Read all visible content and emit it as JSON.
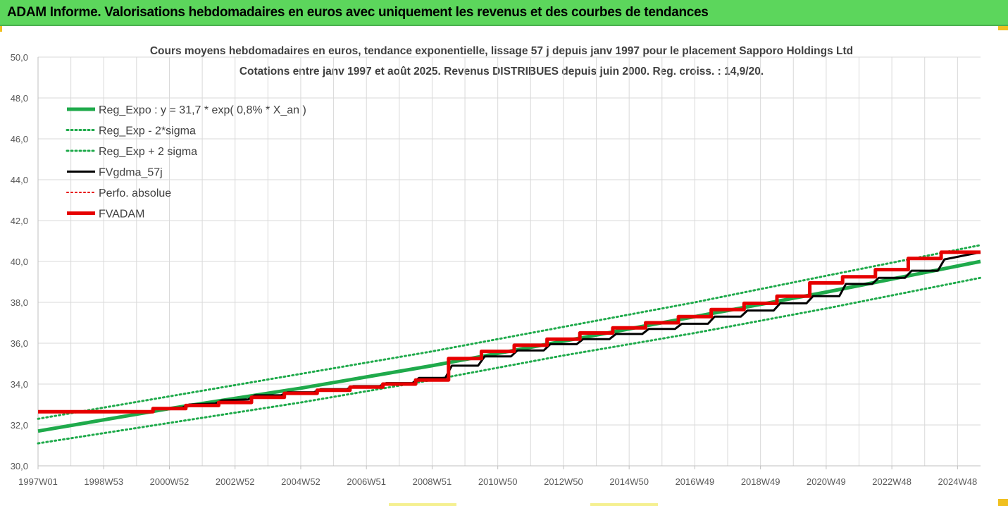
{
  "banner": {
    "title": "ADAM Informe. Valorisations hebdomadaires en euros avec uniquement les revenus et des courbes de tendances"
  },
  "colors": {
    "banner_bg": "#5cd65c",
    "green_line": "#1faa4b",
    "red_line": "#e60000",
    "black_line": "#000000",
    "grid": "#d9d9d9"
  },
  "chart_data": {
    "type": "line",
    "title": "Cours moyens hebdomadaires en euros, tendance exponentielle, lissage 57 j depuis janv 1997 pour le placement Sapporo Holdings Ltd",
    "subtitle": "Cotations entre janv 1997 et août 2025. Revenus DISTRIBUES depuis juin 2000. Reg. croiss. : 14,9/20.",
    "xlabel": "",
    "ylabel": "",
    "ylim": [
      30,
      50
    ],
    "xlim": [
      1997.0,
      2025.7
    ],
    "y_ticks": [
      "30,0",
      "32,0",
      "34,0",
      "36,0",
      "38,0",
      "40,0",
      "42,0",
      "44,0",
      "46,0",
      "48,0",
      "50,0"
    ],
    "x_ticks": [
      {
        "label": "1997W01",
        "x": 1997.0
      },
      {
        "label": "1998W53",
        "x": 1999.0
      },
      {
        "label": "2000W52",
        "x": 2001.0
      },
      {
        "label": "2002W52",
        "x": 2003.0
      },
      {
        "label": "2004W52",
        "x": 2005.0
      },
      {
        "label": "2006W51",
        "x": 2007.0
      },
      {
        "label": "2008W51",
        "x": 2009.0
      },
      {
        "label": "2010W50",
        "x": 2011.0
      },
      {
        "label": "2012W50",
        "x": 2013.0
      },
      {
        "label": "2014W50",
        "x": 2015.0
      },
      {
        "label": "2016W49",
        "x": 2017.0
      },
      {
        "label": "2018W49",
        "x": 2019.0
      },
      {
        "label": "2020W49",
        "x": 2021.0
      },
      {
        "label": "2022W48",
        "x": 2023.0
      },
      {
        "label": "2024W48",
        "x": 2025.0
      }
    ],
    "grid": true,
    "legend_position": "top-left",
    "legend": [
      {
        "name": "Reg_Expo : y = 31,7 * exp( 0,8% *  X_an )",
        "color": "#1faa4b",
        "style": "solid",
        "width": 5
      },
      {
        "name": "Reg_Exp - 2*sigma",
        "color": "#1faa4b",
        "style": "dotted",
        "width": 3
      },
      {
        "name": "Reg_Exp + 2 sigma",
        "color": "#1faa4b",
        "style": "dotted",
        "width": 3
      },
      {
        "name": "FVgdma_57j",
        "color": "#000000",
        "style": "solid",
        "width": 3
      },
      {
        "name": "Perfo. absolue",
        "color": "#e60000",
        "style": "dotted",
        "width": 2
      },
      {
        "name": "FVADAM",
        "color": "#e60000",
        "style": "solid",
        "width": 5
      }
    ],
    "series": [
      {
        "name": "Reg_Expo : y = 31,7 * exp( 0,8% *  X_an )",
        "x": [
          1997.0,
          2001.0,
          2005.0,
          2009.0,
          2013.0,
          2017.0,
          2021.0,
          2025.7
        ],
        "values": [
          31.7,
          32.8,
          33.8,
          34.9,
          36.1,
          37.3,
          38.5,
          40.0
        ]
      },
      {
        "name": "Reg_Exp - 2*sigma",
        "x": [
          1997.0,
          2001.0,
          2005.0,
          2009.0,
          2013.0,
          2017.0,
          2021.0,
          2025.7
        ],
        "values": [
          31.1,
          32.1,
          33.1,
          34.2,
          35.4,
          36.5,
          37.7,
          39.2
        ]
      },
      {
        "name": "Reg_Exp + 2 sigma",
        "x": [
          1997.0,
          2001.0,
          2005.0,
          2009.0,
          2013.0,
          2017.0,
          2021.0,
          2025.7
        ],
        "values": [
          32.3,
          33.4,
          34.5,
          35.6,
          36.8,
          38.0,
          39.3,
          40.8
        ]
      },
      {
        "name": "FVgdma_57j",
        "x": [
          1997.0,
          2000.4,
          2000.6,
          2001.4,
          2001.6,
          2002.4,
          2002.6,
          2003.4,
          2003.6,
          2004.4,
          2004.6,
          2005.4,
          2005.6,
          2006.4,
          2006.6,
          2007.4,
          2007.6,
          2008.4,
          2008.6,
          2009.4,
          2009.6,
          2010.4,
          2010.6,
          2011.4,
          2011.6,
          2012.4,
          2012.6,
          2013.4,
          2013.6,
          2014.4,
          2014.6,
          2015.4,
          2015.6,
          2016.4,
          2016.6,
          2017.4,
          2017.6,
          2018.4,
          2018.6,
          2019.4,
          2019.6,
          2020.4,
          2020.6,
          2021.4,
          2021.6,
          2022.4,
          2022.6,
          2023.4,
          2023.6,
          2024.4,
          2024.6,
          2025.7
        ],
        "values": [
          32.65,
          32.65,
          32.8,
          32.85,
          33.0,
          33.05,
          33.2,
          33.25,
          33.45,
          33.45,
          33.6,
          33.6,
          33.75,
          33.75,
          33.9,
          33.9,
          34.05,
          34.05,
          34.3,
          34.3,
          34.9,
          34.9,
          35.35,
          35.35,
          35.65,
          35.65,
          35.95,
          35.95,
          36.2,
          36.2,
          36.45,
          36.45,
          36.7,
          36.7,
          36.95,
          36.95,
          37.3,
          37.3,
          37.6,
          37.6,
          37.95,
          37.95,
          38.3,
          38.3,
          38.9,
          38.9,
          39.2,
          39.2,
          39.55,
          39.55,
          40.1,
          40.45
        ]
      },
      {
        "name": "FVADAM",
        "x": [
          1997.0,
          2000.5,
          2000.5,
          2001.5,
          2001.5,
          2002.5,
          2002.5,
          2003.5,
          2003.5,
          2004.5,
          2004.5,
          2005.5,
          2005.5,
          2006.5,
          2006.5,
          2007.5,
          2007.5,
          2008.5,
          2008.5,
          2009.5,
          2009.5,
          2010.5,
          2010.5,
          2011.5,
          2011.5,
          2012.5,
          2012.5,
          2013.5,
          2013.5,
          2014.5,
          2014.5,
          2015.5,
          2015.5,
          2016.5,
          2016.5,
          2017.5,
          2017.5,
          2018.5,
          2018.5,
          2019.5,
          2019.5,
          2020.5,
          2020.5,
          2021.5,
          2021.5,
          2022.5,
          2022.5,
          2023.5,
          2023.5,
          2024.5,
          2024.5,
          2025.7
        ],
        "values": [
          32.65,
          32.65,
          32.8,
          32.8,
          32.95,
          32.95,
          33.1,
          33.1,
          33.35,
          33.35,
          33.55,
          33.55,
          33.7,
          33.7,
          33.85,
          33.85,
          34.0,
          34.0,
          34.2,
          34.2,
          35.25,
          35.25,
          35.6,
          35.6,
          35.9,
          35.9,
          36.2,
          36.2,
          36.5,
          36.5,
          36.75,
          36.75,
          37.0,
          37.0,
          37.3,
          37.3,
          37.65,
          37.65,
          37.95,
          37.95,
          38.3,
          38.3,
          38.95,
          38.95,
          39.25,
          39.25,
          39.6,
          39.6,
          40.15,
          40.15,
          40.45,
          40.45
        ]
      }
    ]
  }
}
